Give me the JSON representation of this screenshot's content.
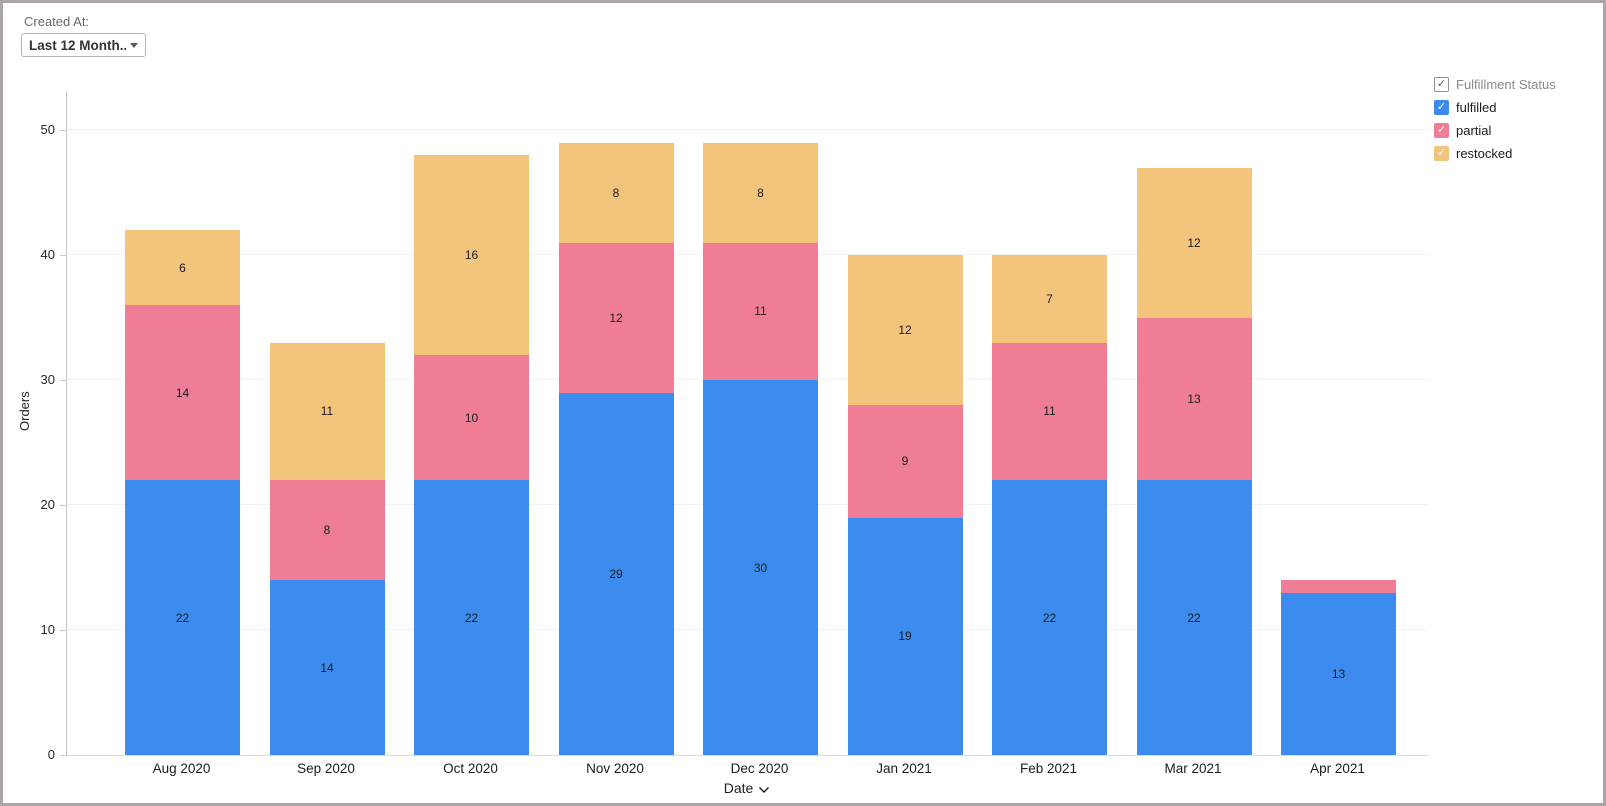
{
  "filter": {
    "label": "Created At:",
    "value": "Last 12 Month...",
    "icon": "caret-down-icon"
  },
  "legend": {
    "checkmark": "✓",
    "title": "Fulfillment Status",
    "title_checkbox_checked": true,
    "items": [
      {
        "label": "fulfilled",
        "color": "#3b8cee",
        "checked": true
      },
      {
        "label": "partial",
        "color": "#f07d96",
        "checked": true
      },
      {
        "label": "restocked",
        "color": "#f3c47c",
        "checked": true
      }
    ]
  },
  "chart_data": {
    "type": "bar",
    "stacked": true,
    "title": "",
    "categories": [
      "Aug 2020",
      "Sep 2020",
      "Oct 2020",
      "Nov 2020",
      "Dec 2020",
      "Jan 2021",
      "Feb 2021",
      "Mar 2021",
      "Apr 2021"
    ],
    "series": [
      {
        "name": "fulfilled",
        "color": "#3b8cee",
        "values": [
          22,
          14,
          22,
          29,
          30,
          19,
          22,
          22,
          13
        ]
      },
      {
        "name": "partial",
        "color": "#f07d96",
        "values": [
          14,
          8,
          10,
          12,
          11,
          9,
          11,
          13,
          1
        ]
      },
      {
        "name": "restocked",
        "color": "#f3c47c",
        "values": [
          6,
          11,
          16,
          8,
          8,
          12,
          7,
          12,
          0
        ]
      }
    ],
    "totals": [
      42,
      33,
      48,
      49,
      49,
      40,
      40,
      47,
      14
    ],
    "xlabel": "Date",
    "ylabel": "Orders",
    "ylim": [
      0,
      50
    ],
    "yticks": [
      0,
      10,
      20,
      30,
      40,
      50
    ],
    "grid": "horizontal",
    "legend_position": "top-right",
    "value_labels": true,
    "min_value_for_label": 2
  }
}
